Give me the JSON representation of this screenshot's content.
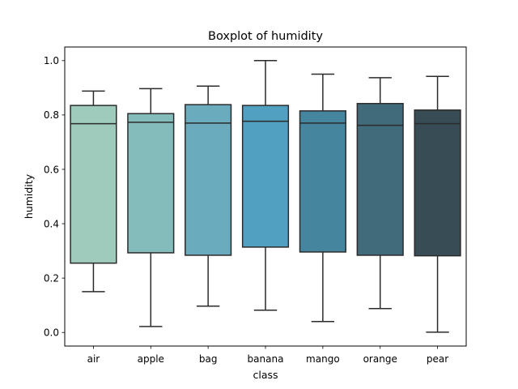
{
  "chart_data": {
    "type": "box",
    "title": "Boxplot of humidity",
    "xlabel": "class",
    "ylabel": "humidity",
    "ylim": [
      -0.05,
      1.05
    ],
    "yticks": [
      "0.0",
      "0.2",
      "0.4",
      "0.6",
      "0.8",
      "1.0"
    ],
    "categories": [
      "air",
      "apple",
      "bag",
      "banana",
      "mango",
      "orange",
      "pear"
    ],
    "boxes": [
      {
        "name": "air",
        "whisker_low": 0.15,
        "q1": 0.255,
        "median": 0.768,
        "q3": 0.835,
        "whisker_high": 0.888,
        "color": "#9ecbbc"
      },
      {
        "name": "apple",
        "whisker_low": 0.022,
        "q1": 0.293,
        "median": 0.773,
        "q3": 0.805,
        "whisker_high": 0.897,
        "color": "#84bcbc"
      },
      {
        "name": "bag",
        "whisker_low": 0.097,
        "q1": 0.284,
        "median": 0.77,
        "q3": 0.838,
        "whisker_high": 0.906,
        "color": "#6babbe"
      },
      {
        "name": "banana",
        "whisker_low": 0.082,
        "q1": 0.314,
        "median": 0.777,
        "q3": 0.835,
        "whisker_high": 1.0,
        "color": "#51a0c1"
      },
      {
        "name": "mango",
        "whisker_low": 0.04,
        "q1": 0.296,
        "median": 0.77,
        "q3": 0.815,
        "whisker_high": 0.95,
        "color": "#45869e"
      },
      {
        "name": "orange",
        "whisker_low": 0.088,
        "q1": 0.284,
        "median": 0.762,
        "q3": 0.842,
        "whisker_high": 0.937,
        "color": "#416a7a"
      },
      {
        "name": "pear",
        "whisker_low": 0.001,
        "q1": 0.282,
        "median": 0.768,
        "q3": 0.818,
        "whisker_high": 0.942,
        "color": "#384c55"
      }
    ],
    "grid": false,
    "legend": "none"
  }
}
